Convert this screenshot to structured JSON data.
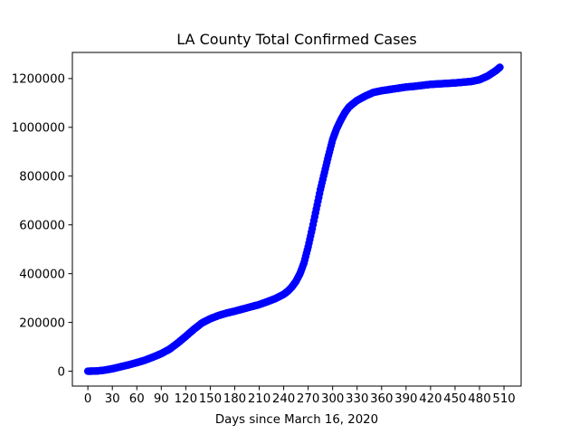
{
  "chart_data": {
    "type": "scatter",
    "title": "LA County Total Confirmed Cases",
    "xlabel": "Days since March 16, 2020",
    "ylabel": "",
    "xlim": [
      -19,
      531
    ],
    "ylim": [
      -61000,
      1307000
    ],
    "x_ticks": [
      0,
      30,
      60,
      90,
      120,
      150,
      180,
      210,
      240,
      270,
      300,
      330,
      360,
      390,
      420,
      450,
      480,
      510
    ],
    "x_tick_labels": [
      "0",
      "30",
      "60",
      "90",
      "120",
      "150",
      "180",
      "210",
      "240",
      "270",
      "300",
      "330",
      "360",
      "390",
      "420",
      "450",
      "480",
      "510"
    ],
    "y_ticks": [
      0,
      200000,
      400000,
      600000,
      800000,
      1000000,
      1200000
    ],
    "y_tick_labels": [
      "0",
      "200000",
      "400000",
      "600000",
      "800000",
      "1000000",
      "1200000"
    ],
    "grid": false,
    "marker_color": "#0000ff",
    "series": [
      {
        "x": [
          0,
          10,
          20,
          30,
          40,
          50,
          60,
          70,
          80,
          90,
          100,
          110,
          120,
          130,
          140,
          150,
          160,
          170,
          180,
          190,
          200,
          210,
          220,
          230,
          240,
          245,
          250,
          255,
          260,
          265,
          270,
          275,
          280,
          285,
          290,
          295,
          300,
          305,
          310,
          315,
          320,
          325,
          330,
          340,
          350,
          360,
          370,
          380,
          390,
          400,
          410,
          420,
          430,
          440,
          450,
          460,
          470,
          480,
          490,
          500,
          505
        ],
        "y": [
          0,
          500,
          4000,
          10000,
          18000,
          26000,
          35000,
          45000,
          58000,
          72000,
          90000,
          115000,
          143000,
          172000,
          198000,
          215000,
          228000,
          238000,
          246000,
          255000,
          264000,
          273000,
          285000,
          298000,
          315000,
          328000,
          345000,
          368000,
          400000,
          445000,
          510000,
          585000,
          665000,
          745000,
          815000,
          885000,
          950000,
          995000,
          1030000,
          1060000,
          1083000,
          1097000,
          1110000,
          1128000,
          1143000,
          1150000,
          1155000,
          1160000,
          1165000,
          1168000,
          1172000,
          1176000,
          1178000,
          1180000,
          1182000,
          1185000,
          1188000,
          1195000,
          1210000,
          1232000,
          1246000
        ]
      }
    ]
  }
}
